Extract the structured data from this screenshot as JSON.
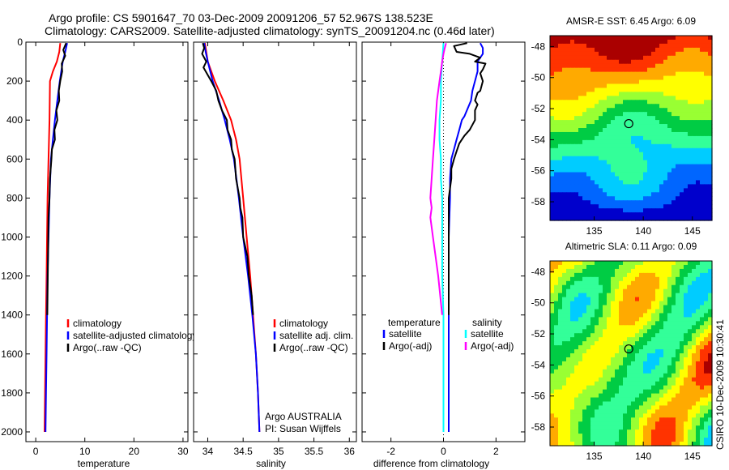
{
  "title_line1": "Argo profile: CS 5901647_70 03-Dec-2009 20091206_57 52.967S 138.523E",
  "title_line2": "Climatology: CARS2009. Satellite-adjusted climatology: synTS_20091204.nc (0.46d later)",
  "side_label": "CSIRO 10-Dec-2009 10:30:41",
  "chart_data": [
    {
      "type": "line",
      "id": "temperature",
      "xlabel": "temperature",
      "xlim": [
        -2,
        31
      ],
      "ylim": [
        0,
        2050
      ],
      "y_reversed": true,
      "xticks": [
        0,
        10,
        20,
        30
      ],
      "yticks": [
        0,
        200,
        400,
        600,
        800,
        1000,
        1200,
        1400,
        1600,
        1800,
        2000
      ],
      "legend": [
        "climatology",
        "satellite-adjusted climatology",
        "Argo(..raw -QC)"
      ],
      "series": [
        {
          "name": "climatology",
          "color": "#ff0000",
          "points": [
            [
              5.0,
              5
            ],
            [
              4.8,
              50
            ],
            [
              4.3,
              100
            ],
            [
              3.5,
              150
            ],
            [
              2.9,
              200
            ],
            [
              2.8,
              400
            ],
            [
              2.6,
              600
            ],
            [
              2.4,
              800
            ],
            [
              2.3,
              1000
            ],
            [
              2.2,
              1200
            ],
            [
              2.1,
              1400
            ],
            [
              2.0,
              1600
            ],
            [
              1.9,
              1800
            ],
            [
              1.8,
              2000
            ]
          ]
        },
        {
          "name": "satellite-adjusted climatology",
          "color": "#0000ff",
          "points": [
            [
              6.4,
              5
            ],
            [
              6.0,
              50
            ],
            [
              5.5,
              100
            ],
            [
              4.9,
              200
            ],
            [
              4.4,
              300
            ],
            [
              3.9,
              400
            ],
            [
              3.5,
              500
            ],
            [
              3.1,
              600
            ],
            [
              2.8,
              800
            ],
            [
              2.6,
              1000
            ],
            [
              2.4,
              1200
            ],
            [
              2.3,
              1400
            ],
            [
              2.2,
              1600
            ],
            [
              2.1,
              1800
            ],
            [
              2.0,
              2000
            ]
          ]
        },
        {
          "name": "Argo(..raw -QC)",
          "color": "#000000",
          "points": [
            [
              6.2,
              5
            ],
            [
              5.6,
              40
            ],
            [
              6.0,
              70
            ],
            [
              5.3,
              110
            ],
            [
              5.4,
              150
            ],
            [
              5.0,
              200
            ],
            [
              4.7,
              250
            ],
            [
              4.8,
              300
            ],
            [
              4.2,
              350
            ],
            [
              4.4,
              400
            ],
            [
              3.8,
              450
            ],
            [
              3.9,
              500
            ],
            [
              3.3,
              550
            ],
            [
              3.2,
              600
            ],
            [
              2.9,
              700
            ],
            [
              2.8,
              800
            ],
            [
              2.6,
              900
            ],
            [
              2.55,
              1000
            ],
            [
              2.45,
              1200
            ],
            [
              2.35,
              1400
            ]
          ]
        }
      ]
    },
    {
      "type": "line",
      "id": "salinity",
      "xlabel": "salinity",
      "xlim": [
        33.8,
        36.1
      ],
      "ylim": [
        0,
        2050
      ],
      "y_reversed": true,
      "xticks": [
        34,
        34.5,
        35,
        35.5,
        36
      ],
      "xticklabels": [
        "34",
        "34.5",
        "35",
        "35.5",
        "36"
      ],
      "legend": [
        "climatology",
        "satellite adj. clim.",
        "Argo(..raw -QC)"
      ],
      "annotation": [
        "Argo AUSTRALIA",
        "PI: Susan Wijffels"
      ],
      "series": [
        {
          "name": "climatology",
          "color": "#ff0000",
          "points": [
            [
              33.96,
              5
            ],
            [
              34.0,
              100
            ],
            [
              34.1,
              200
            ],
            [
              34.22,
              300
            ],
            [
              34.33,
              400
            ],
            [
              34.4,
              500
            ],
            [
              34.45,
              600
            ],
            [
              34.5,
              800
            ],
            [
              34.55,
              1000
            ],
            [
              34.6,
              1200
            ],
            [
              34.64,
              1400
            ],
            [
              34.68,
              1600
            ],
            [
              34.71,
              1800
            ],
            [
              34.73,
              2000
            ]
          ]
        },
        {
          "name": "satellite adj. clim.",
          "color": "#0000ff",
          "points": [
            [
              33.95,
              5
            ],
            [
              33.97,
              50
            ],
            [
              34.0,
              100
            ],
            [
              34.07,
              200
            ],
            [
              34.16,
              300
            ],
            [
              34.24,
              400
            ],
            [
              34.31,
              500
            ],
            [
              34.37,
              600
            ],
            [
              34.44,
              800
            ],
            [
              34.5,
              1000
            ],
            [
              34.57,
              1200
            ],
            [
              34.63,
              1400
            ],
            [
              34.68,
              1600
            ],
            [
              34.71,
              1800
            ],
            [
              34.73,
              2000
            ]
          ]
        },
        {
          "name": "Argo(..raw -QC)",
          "color": "#000000",
          "points": [
            [
              33.93,
              5
            ],
            [
              33.95,
              30
            ],
            [
              33.92,
              60
            ],
            [
              33.98,
              100
            ],
            [
              33.94,
              130
            ],
            [
              34.05,
              200
            ],
            [
              34.12,
              250
            ],
            [
              34.15,
              300
            ],
            [
              34.2,
              350
            ],
            [
              34.27,
              400
            ],
            [
              34.28,
              450
            ],
            [
              34.33,
              500
            ],
            [
              34.34,
              550
            ],
            [
              34.38,
              600
            ],
            [
              34.4,
              700
            ],
            [
              34.45,
              800
            ],
            [
              34.46,
              850
            ],
            [
              34.49,
              900
            ],
            [
              34.5,
              1000
            ],
            [
              34.56,
              1100
            ],
            [
              34.58,
              1200
            ],
            [
              34.62,
              1300
            ],
            [
              34.64,
              1400
            ]
          ]
        }
      ]
    },
    {
      "type": "line",
      "id": "difference",
      "xlabel": "difference from climatology",
      "xlim": [
        -3.1,
        3.1
      ],
      "ylim": [
        0,
        2050
      ],
      "y_reversed": true,
      "xticks": [
        -2,
        0,
        2
      ],
      "zero_line": "dotted",
      "legend_temperature_header": "temperature",
      "legend_salinity_header": "salinity",
      "legend_temperature": [
        "satellite",
        "Argo(-adj)"
      ],
      "legend_salinity": [
        "satellite",
        "Argo(-adj)"
      ],
      "series": [
        {
          "name": "temperature satellite",
          "color": "#0000ff",
          "points": [
            [
              1.4,
              5
            ],
            [
              1.5,
              30
            ],
            [
              1.5,
              60
            ],
            [
              1.3,
              100
            ],
            [
              1.3,
              150
            ],
            [
              1.2,
              200
            ],
            [
              1.1,
              250
            ],
            [
              1.05,
              300
            ],
            [
              0.8,
              380
            ],
            [
              0.7,
              400
            ],
            [
              0.6,
              450
            ],
            [
              0.5,
              500
            ],
            [
              0.4,
              550
            ],
            [
              0.3,
              600
            ],
            [
              0.25,
              700
            ],
            [
              0.25,
              800
            ],
            [
              0.2,
              1000
            ],
            [
              0.2,
              1400
            ],
            [
              0.2,
              2000
            ]
          ]
        },
        {
          "name": "temperature Argo(-adj)",
          "color": "#000000",
          "points": [
            [
              0.9,
              5
            ],
            [
              0.4,
              20
            ],
            [
              0.5,
              50
            ],
            [
              1.0,
              60
            ],
            [
              1.4,
              80
            ],
            [
              1.2,
              100
            ],
            [
              1.6,
              110
            ],
            [
              1.5,
              140
            ],
            [
              1.4,
              160
            ],
            [
              1.5,
              200
            ],
            [
              1.4,
              250
            ],
            [
              1.3,
              260
            ],
            [
              1.2,
              300
            ],
            [
              1.3,
              320
            ],
            [
              1.2,
              350
            ],
            [
              1.2,
              400
            ],
            [
              1.0,
              450
            ],
            [
              0.8,
              480
            ],
            [
              0.7,
              500
            ],
            [
              0.6,
              520
            ],
            [
              0.5,
              560
            ],
            [
              0.4,
              600
            ],
            [
              0.3,
              650
            ],
            [
              0.3,
              700
            ],
            [
              0.2,
              800
            ],
            [
              0.2,
              900
            ],
            [
              0.2,
              1000
            ],
            [
              0.2,
              1200
            ],
            [
              0.2,
              1400
            ]
          ]
        },
        {
          "name": "salinity satellite",
          "color": "#00ffff",
          "points": [
            [
              0.0,
              5
            ],
            [
              -0.05,
              100
            ],
            [
              -0.1,
              200
            ],
            [
              -0.1,
              300
            ],
            [
              -0.15,
              400
            ],
            [
              -0.15,
              500
            ],
            [
              -0.1,
              600
            ],
            [
              -0.1,
              700
            ],
            [
              -0.05,
              800
            ],
            [
              -0.05,
              1000
            ],
            [
              -0.05,
              1200
            ],
            [
              0.0,
              1400
            ],
            [
              0.0,
              1600
            ],
            [
              0.0,
              1800
            ],
            [
              0.0,
              2000
            ]
          ]
        },
        {
          "name": "salinity Argo(-adj)",
          "color": "#ff00ff",
          "points": [
            [
              0.1,
              5
            ],
            [
              0.05,
              30
            ],
            [
              0.0,
              60
            ],
            [
              -0.05,
              100
            ],
            [
              -0.1,
              150
            ],
            [
              -0.15,
              200
            ],
            [
              -0.2,
              250
            ],
            [
              -0.25,
              300
            ],
            [
              -0.3,
              400
            ],
            [
              -0.35,
              500
            ],
            [
              -0.4,
              600
            ],
            [
              -0.45,
              700
            ],
            [
              -0.5,
              800
            ],
            [
              -0.45,
              850
            ],
            [
              -0.5,
              900
            ],
            [
              -0.4,
              1000
            ],
            [
              -0.2,
              1200
            ],
            [
              -0.05,
              1400
            ]
          ]
        }
      ]
    },
    {
      "type": "heatmap",
      "id": "sst_map",
      "title": "AMSR-E SST: 6.45  Argo: 6.09",
      "xlim": [
        130.5,
        147
      ],
      "ylim": [
        -59.2,
        -47.3
      ],
      "xticks": [
        135,
        140,
        145
      ],
      "yticks": [
        -48,
        -50,
        -52,
        -54,
        -56,
        -58
      ],
      "marker": {
        "lon": 138.523,
        "lat": -52.967
      },
      "colors": [
        "#0000cc",
        "#0066ff",
        "#00ccff",
        "#33ff99",
        "#00cc44",
        "#99ff33",
        "#ffff00",
        "#ffaa00",
        "#ff3300",
        "#aa0000"
      ]
    },
    {
      "type": "heatmap",
      "id": "sla_map",
      "title": "Altimetric SLA: 0.11  Argo: 0.09",
      "xlim": [
        130.5,
        147
      ],
      "ylim": [
        -59.2,
        -47.3
      ],
      "xticks": [
        135,
        140,
        145
      ],
      "yticks": [
        -48,
        -50,
        -52,
        -54,
        -56,
        -58
      ],
      "marker": {
        "lon": 138.523,
        "lat": -52.967
      },
      "colors": [
        "#0000cc",
        "#0066ff",
        "#00ccff",
        "#33ff99",
        "#00cc44",
        "#99ff33",
        "#ffff00",
        "#ffaa00",
        "#ff3300",
        "#aa0000"
      ]
    }
  ]
}
